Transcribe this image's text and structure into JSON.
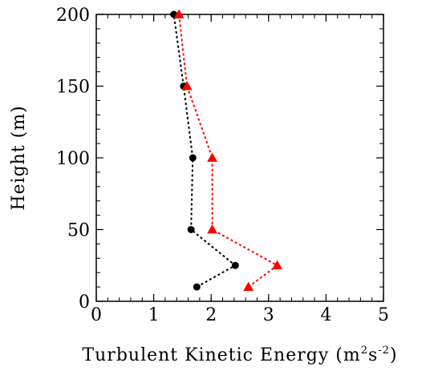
{
  "chart_data": {
    "type": "line",
    "xlabel": "Turbulent Kinetic Energy (m",
    "xlabel_unit_sup1": "2",
    "xlabel_unit_mid": "s",
    "xlabel_unit_sup2": "-2",
    "xlabel_unit_end": ")",
    "ylabel": "Height (m)",
    "xlim": [
      0,
      5
    ],
    "ylim": [
      0,
      200
    ],
    "xticks": [
      0,
      1,
      2,
      3,
      4,
      5
    ],
    "yticks": [
      0,
      50,
      100,
      150,
      200
    ],
    "xtick_labels": [
      "0",
      "1",
      "2",
      "3",
      "4",
      "5"
    ],
    "ytick_labels": [
      "0",
      "50",
      "100",
      "150",
      "200"
    ],
    "grid": false,
    "legend": "none",
    "series": [
      {
        "marker": "circle",
        "color": "#000000",
        "line_style": "dotted",
        "points": [
          {
            "x": 1.75,
            "y": 10
          },
          {
            "x": 2.42,
            "y": 25
          },
          {
            "x": 1.65,
            "y": 50
          },
          {
            "x": 1.68,
            "y": 100
          },
          {
            "x": 1.52,
            "y": 150
          },
          {
            "x": 1.35,
            "y": 200
          }
        ]
      },
      {
        "marker": "triangle",
        "color": "#ff0000",
        "line_style": "dotted",
        "points": [
          {
            "x": 2.65,
            "y": 10
          },
          {
            "x": 3.15,
            "y": 25
          },
          {
            "x": 2.02,
            "y": 50
          },
          {
            "x": 2.02,
            "y": 100
          },
          {
            "x": 1.58,
            "y": 150
          },
          {
            "x": 1.44,
            "y": 200
          }
        ]
      }
    ]
  }
}
